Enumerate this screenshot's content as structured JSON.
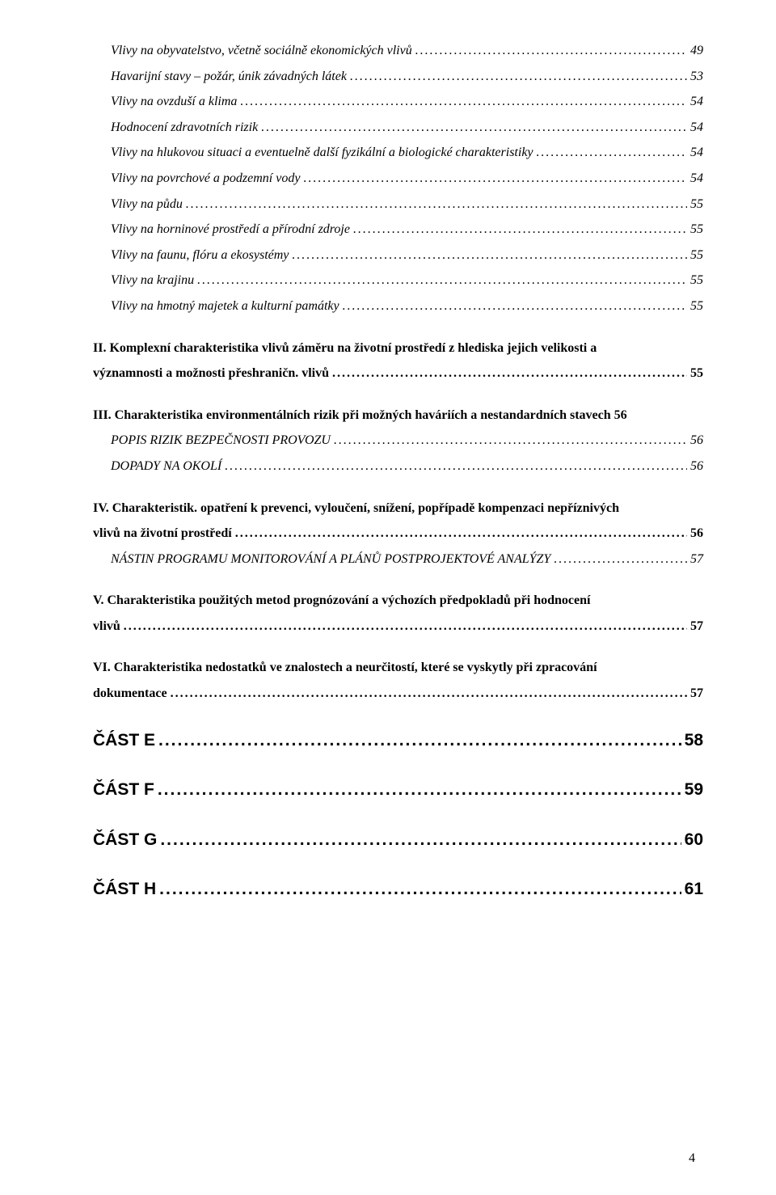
{
  "block1": [
    {
      "title": "Vlivy na obyvatelstvo, včetně sociálně ekonomických vlivů",
      "page": "49",
      "indent": 1,
      "italic": true
    },
    {
      "title": "Havarijní stavy – požár, únik závadných látek",
      "page": "53",
      "indent": 1,
      "italic": true
    },
    {
      "title": "Vlivy na ovzduší a klima",
      "page": "54",
      "indent": 1,
      "italic": true
    },
    {
      "title": "Hodnocení zdravotních rizik",
      "page": "54",
      "indent": 1,
      "italic": true
    },
    {
      "title": "Vlivy na hlukovou situaci  a eventuelně další fyzikální a biologické charakteristiky",
      "page": "54",
      "indent": 1,
      "italic": true
    },
    {
      "title": "Vlivy na povrchové a podzemní vody",
      "page": "54",
      "indent": 1,
      "italic": true
    },
    {
      "title": "Vlivy na půdu",
      "page": "55",
      "indent": 1,
      "italic": true
    },
    {
      "title": "Vlivy na horninové prostředí a přírodní zdroje",
      "page": "55",
      "indent": 1,
      "italic": true
    },
    {
      "title": "Vlivy na faunu, flóru a ekosystémy",
      "page": "55",
      "indent": 1,
      "italic": true
    },
    {
      "title": "Vlivy na krajinu",
      "page": "55",
      "indent": 1,
      "italic": true
    },
    {
      "title": "Vlivy na hmotný majetek a kulturní památky",
      "page": "55",
      "indent": 1,
      "italic": true
    }
  ],
  "sec2": {
    "leadA": "II. Komplexní charakteristika  vlivů záměru na  životní prostředí z hlediska jejich velikosti a",
    "leadB_title": "významnosti a možnosti přeshraničn. vlivů",
    "leadB_page": "55"
  },
  "sec3": {
    "head_title": "III. Charakteristika environmentálních rizik při možných haváriích a nestandardních stavech",
    "head_page": "56",
    "items": [
      {
        "title": "POPIS RIZIK BEZPEČNOSTI PROVOZU",
        "page": "56",
        "indent": 1,
        "italic": true
      },
      {
        "title": "DOPADY NA OKOLÍ",
        "page": "56",
        "indent": 1,
        "italic": true
      }
    ]
  },
  "sec4": {
    "leadA": "IV. Charakteristik. opatření k prevenci, vyloučení, snížení, popřípadě kompenzaci nepříznivých",
    "leadB_title": "vlivů na životní prostředí",
    "leadB_page": "56",
    "items": [
      {
        "title": "NÁSTIN PROGRAMU MONITOROVÁNÍ A PLÁNŮ POSTPROJEKTOVÉ ANALÝZY",
        "page": "57",
        "indent": 1,
        "italic": true
      }
    ]
  },
  "sec5": {
    "leadA": "V. Charakteristika  použitých  metod  prognózování  a  výchozích předpokladů při hodnocení",
    "leadB_title": "vlivů",
    "leadB_page": "57"
  },
  "sec6": {
    "leadA": "VI. Charakteristika nedostatků ve znalostech a neurčitostí, které se vyskytly při zpracování",
    "leadB_title": "dokumentace",
    "leadB_page": "57"
  },
  "parts": [
    {
      "title": "ČÁST E",
      "page": "58"
    },
    {
      "title": "ČÁST F",
      "page": "59"
    },
    {
      "title": "ČÁST G",
      "page": "60"
    },
    {
      "title": "ČÁST H",
      "page": "61"
    }
  ],
  "pageNumber": "4"
}
